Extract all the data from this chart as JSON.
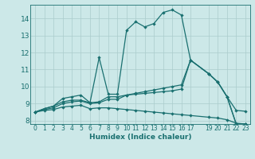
{
  "xlabel": "Humidex (Indice chaleur)",
  "bg_color": "#cce8e8",
  "grid_color": "#aacccc",
  "line_color": "#1a7070",
  "xlim": [
    -0.5,
    23.5
  ],
  "ylim": [
    7.8,
    14.8
  ],
  "xticks": [
    0,
    1,
    2,
    3,
    4,
    5,
    6,
    7,
    8,
    9,
    10,
    11,
    12,
    13,
    14,
    15,
    16,
    17,
    19,
    20,
    21,
    22,
    23
  ],
  "yticks": [
    8,
    9,
    10,
    11,
    12,
    13,
    14
  ],
  "line1_x": [
    0,
    1,
    2,
    3,
    4,
    5,
    6,
    7,
    8,
    9,
    10,
    11,
    12,
    13,
    14,
    15,
    16,
    17,
    19,
    20,
    21,
    22,
    23
  ],
  "line1_y": [
    8.5,
    8.7,
    8.85,
    9.3,
    9.4,
    9.5,
    9.05,
    11.7,
    9.55,
    9.55,
    13.3,
    13.8,
    13.5,
    13.7,
    14.35,
    14.5,
    14.2,
    11.55,
    10.75,
    10.25,
    9.4,
    7.8,
    7.8
  ],
  "line2_x": [
    0,
    1,
    2,
    3,
    4,
    5,
    6,
    7,
    8,
    9,
    10,
    11,
    12,
    13,
    14,
    15,
    16,
    17,
    19,
    20,
    21,
    22,
    23
  ],
  "line2_y": [
    8.5,
    8.7,
    8.85,
    9.1,
    9.2,
    9.2,
    9.05,
    9.1,
    9.4,
    9.4,
    9.5,
    9.6,
    9.7,
    9.8,
    9.9,
    10.0,
    10.1,
    11.55,
    10.75,
    10.25,
    9.4,
    7.8,
    7.8
  ],
  "line3_x": [
    0,
    1,
    2,
    3,
    4,
    5,
    6,
    7,
    8,
    9,
    10,
    11,
    12,
    13,
    14,
    15,
    16,
    17,
    19,
    20,
    21,
    22,
    23
  ],
  "line3_y": [
    8.5,
    8.65,
    8.75,
    9.0,
    9.1,
    9.15,
    9.0,
    9.05,
    9.25,
    9.25,
    9.5,
    9.55,
    9.6,
    9.65,
    9.7,
    9.75,
    9.85,
    11.55,
    10.75,
    10.25,
    9.4,
    8.6,
    8.55
  ],
  "line4_x": [
    0,
    1,
    2,
    3,
    4,
    5,
    6,
    7,
    8,
    9,
    10,
    11,
    12,
    13,
    14,
    15,
    16,
    17,
    19,
    20,
    21,
    22,
    23
  ],
  "line4_y": [
    8.5,
    8.6,
    8.65,
    8.8,
    8.85,
    8.9,
    8.7,
    8.75,
    8.75,
    8.7,
    8.65,
    8.6,
    8.55,
    8.5,
    8.45,
    8.4,
    8.35,
    8.3,
    8.2,
    8.15,
    8.05,
    7.85,
    7.8
  ]
}
